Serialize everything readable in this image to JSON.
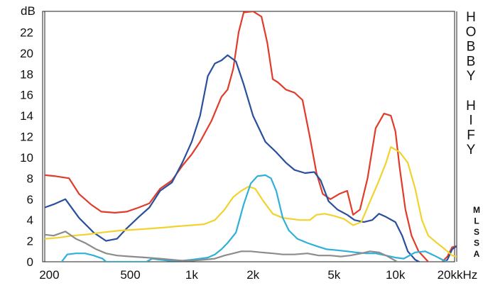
{
  "chart_data": {
    "type": "line",
    "xscale": "log",
    "xlim": [
      190,
      20000
    ],
    "ylim": [
      0,
      24
    ],
    "y_unit": "dB",
    "x_unit": "kHz",
    "grid": false,
    "x_ticks": [
      {
        "value": 200,
        "label": "200"
      },
      {
        "value": 500,
        "label": "500"
      },
      {
        "value": 1000,
        "label": "1k"
      },
      {
        "value": 2000,
        "label": "2k"
      },
      {
        "value": 5000,
        "label": "5k"
      },
      {
        "value": 10000,
        "label": "10k"
      },
      {
        "value": 20000,
        "label": "20k"
      }
    ],
    "y_ticks": [
      {
        "value": 0,
        "label": "0"
      },
      {
        "value": 2,
        "label": "2"
      },
      {
        "value": 4,
        "label": "4"
      },
      {
        "value": 6,
        "label": "6"
      },
      {
        "value": 8,
        "label": "8"
      },
      {
        "value": 10,
        "label": "10"
      },
      {
        "value": 12,
        "label": "12"
      },
      {
        "value": 14,
        "label": "14"
      },
      {
        "value": 16,
        "label": "16"
      },
      {
        "value": 18,
        "label": "18"
      },
      {
        "value": 20,
        "label": "20"
      },
      {
        "value": 22,
        "label": "22"
      }
    ],
    "series": [
      {
        "color": "#e03c2a",
        "points": [
          [
            190,
            8.3
          ],
          [
            215,
            8.2
          ],
          [
            250,
            8.0
          ],
          [
            280,
            6.5
          ],
          [
            320,
            5.5
          ],
          [
            360,
            4.8
          ],
          [
            420,
            4.7
          ],
          [
            480,
            4.8
          ],
          [
            550,
            5.2
          ],
          [
            620,
            5.6
          ],
          [
            700,
            7.0
          ],
          [
            800,
            7.8
          ],
          [
            900,
            9.2
          ],
          [
            1000,
            10.3
          ],
          [
            1100,
            11.5
          ],
          [
            1250,
            13.5
          ],
          [
            1400,
            15.8
          ],
          [
            1500,
            16.5
          ],
          [
            1600,
            18.5
          ],
          [
            1700,
            22.0
          ],
          [
            1800,
            23.9
          ],
          [
            2000,
            24.0
          ],
          [
            2200,
            23.5
          ],
          [
            2350,
            21.0
          ],
          [
            2500,
            17.5
          ],
          [
            2650,
            17.2
          ],
          [
            2900,
            16.5
          ],
          [
            3200,
            16.2
          ],
          [
            3500,
            15.5
          ],
          [
            3800,
            12.0
          ],
          [
            4100,
            8.5
          ],
          [
            4400,
            6.5
          ],
          [
            4800,
            6.0
          ],
          [
            5300,
            6.5
          ],
          [
            5800,
            6.8
          ],
          [
            6200,
            4.5
          ],
          [
            6700,
            5.0
          ],
          [
            7300,
            8.0
          ],
          [
            8000,
            12.8
          ],
          [
            8800,
            14.2
          ],
          [
            9500,
            14.0
          ],
          [
            10000,
            12.5
          ],
          [
            10500,
            9.0
          ],
          [
            11200,
            5.0
          ],
          [
            12000,
            2.5
          ],
          [
            13000,
            1.0
          ],
          [
            14500,
            0.0
          ],
          [
            16000,
            -0.5
          ],
          [
            18000,
            0.5
          ],
          [
            19000,
            1.4
          ],
          [
            20000,
            1.5
          ]
        ]
      },
      {
        "color": "#2a4f9c",
        "points": [
          [
            190,
            5.2
          ],
          [
            210,
            5.5
          ],
          [
            240,
            6.0
          ],
          [
            280,
            4.2
          ],
          [
            330,
            2.8
          ],
          [
            380,
            2.0
          ],
          [
            430,
            2.2
          ],
          [
            480,
            3.2
          ],
          [
            550,
            4.3
          ],
          [
            620,
            5.2
          ],
          [
            700,
            6.8
          ],
          [
            800,
            7.6
          ],
          [
            900,
            9.5
          ],
          [
            1000,
            11.5
          ],
          [
            1100,
            14.0
          ],
          [
            1200,
            17.8
          ],
          [
            1300,
            19.0
          ],
          [
            1400,
            19.3
          ],
          [
            1500,
            19.8
          ],
          [
            1650,
            19.2
          ],
          [
            1800,
            17.0
          ],
          [
            2000,
            14.0
          ],
          [
            2300,
            11.5
          ],
          [
            2600,
            10.5
          ],
          [
            2900,
            9.5
          ],
          [
            3200,
            8.8
          ],
          [
            3600,
            8.5
          ],
          [
            4000,
            8.6
          ],
          [
            4300,
            7.8
          ],
          [
            4700,
            5.8
          ],
          [
            5200,
            5.0
          ],
          [
            5800,
            4.5
          ],
          [
            6300,
            4.0
          ],
          [
            7000,
            3.8
          ],
          [
            7700,
            4.0
          ],
          [
            8300,
            4.6
          ],
          [
            9000,
            4.3
          ],
          [
            10000,
            3.8
          ],
          [
            10800,
            2.5
          ],
          [
            11500,
            1.0
          ],
          [
            12500,
            0.2
          ],
          [
            14000,
            -0.3
          ],
          [
            16000,
            -0.5
          ],
          [
            18000,
            0.2
          ],
          [
            19000,
            1.2
          ],
          [
            20000,
            1.5
          ]
        ]
      },
      {
        "color": "#f2d22e",
        "points": [
          [
            190,
            2.2
          ],
          [
            220,
            2.3
          ],
          [
            260,
            2.5
          ],
          [
            300,
            2.6
          ],
          [
            360,
            2.8
          ],
          [
            450,
            3.0
          ],
          [
            550,
            3.1
          ],
          [
            650,
            3.2
          ],
          [
            750,
            3.3
          ],
          [
            850,
            3.4
          ],
          [
            1000,
            3.5
          ],
          [
            1150,
            3.6
          ],
          [
            1300,
            4.0
          ],
          [
            1450,
            5.0
          ],
          [
            1600,
            6.2
          ],
          [
            1750,
            6.8
          ],
          [
            1900,
            7.2
          ],
          [
            2050,
            7.0
          ],
          [
            2250,
            5.8
          ],
          [
            2500,
            4.6
          ],
          [
            2800,
            4.2
          ],
          [
            3100,
            4.1
          ],
          [
            3400,
            4.0
          ],
          [
            3800,
            4.0
          ],
          [
            4100,
            4.5
          ],
          [
            4500,
            4.6
          ],
          [
            5000,
            4.4
          ],
          [
            5600,
            4.1
          ],
          [
            6200,
            3.5
          ],
          [
            6800,
            3.8
          ],
          [
            7400,
            5.5
          ],
          [
            8200,
            7.5
          ],
          [
            9000,
            9.5
          ],
          [
            9500,
            11.0
          ],
          [
            10500,
            10.5
          ],
          [
            11500,
            9.5
          ],
          [
            12500,
            7.0
          ],
          [
            13500,
            4.0
          ],
          [
            14500,
            2.5
          ],
          [
            16000,
            1.8
          ],
          [
            17500,
            1.2
          ],
          [
            19000,
            0.6
          ],
          [
            20000,
            0.5
          ]
        ]
      },
      {
        "color": "#2fb0d8",
        "points": [
          [
            230,
            0.0
          ],
          [
            245,
            0.7
          ],
          [
            270,
            0.8
          ],
          [
            300,
            0.8
          ],
          [
            330,
            0.6
          ],
          [
            365,
            0.3
          ],
          [
            380,
            0.0
          ],
          [
            600,
            0.0
          ],
          [
            640,
            0.3
          ],
          [
            700,
            0.2
          ],
          [
            780,
            0.1
          ],
          [
            900,
            0.1
          ],
          [
            1000,
            0.2
          ],
          [
            1100,
            0.3
          ],
          [
            1200,
            0.4
          ],
          [
            1300,
            0.7
          ],
          [
            1400,
            1.2
          ],
          [
            1500,
            1.8
          ],
          [
            1650,
            2.8
          ],
          [
            1800,
            5.5
          ],
          [
            1950,
            7.5
          ],
          [
            2100,
            8.2
          ],
          [
            2300,
            8.3
          ],
          [
            2450,
            8.0
          ],
          [
            2600,
            6.8
          ],
          [
            2800,
            4.2
          ],
          [
            3000,
            3.0
          ],
          [
            3300,
            2.2
          ],
          [
            3700,
            1.8
          ],
          [
            4100,
            1.5
          ],
          [
            4600,
            1.2
          ],
          [
            5200,
            1.1
          ],
          [
            5800,
            1.0
          ],
          [
            6400,
            0.9
          ],
          [
            7200,
            0.8
          ],
          [
            8000,
            0.8
          ],
          [
            9000,
            0.6
          ],
          [
            10000,
            0.4
          ],
          [
            11000,
            0.3
          ],
          [
            12500,
            0.9
          ],
          [
            14000,
            1.0
          ],
          [
            15500,
            0.6
          ],
          [
            17000,
            0.2
          ],
          [
            18000,
            0.0
          ]
        ]
      },
      {
        "color": "#8c8c8c",
        "points": [
          [
            190,
            2.6
          ],
          [
            210,
            2.5
          ],
          [
            240,
            2.9
          ],
          [
            270,
            2.2
          ],
          [
            300,
            1.8
          ],
          [
            340,
            1.2
          ],
          [
            380,
            0.8
          ],
          [
            430,
            0.6
          ],
          [
            500,
            0.5
          ],
          [
            600,
            0.4
          ],
          [
            700,
            0.3
          ],
          [
            800,
            0.2
          ],
          [
            900,
            0.1
          ],
          [
            1000,
            0.1
          ],
          [
            1150,
            0.2
          ],
          [
            1300,
            0.3
          ],
          [
            1450,
            0.6
          ],
          [
            1600,
            0.8
          ],
          [
            1750,
            1.0
          ],
          [
            1950,
            1.0
          ],
          [
            2200,
            0.9
          ],
          [
            2500,
            0.8
          ],
          [
            2800,
            0.7
          ],
          [
            3200,
            0.7
          ],
          [
            3700,
            0.8
          ],
          [
            4200,
            0.6
          ],
          [
            4800,
            0.6
          ],
          [
            5400,
            0.5
          ],
          [
            6000,
            0.6
          ],
          [
            6800,
            0.8
          ],
          [
            7500,
            1.0
          ],
          [
            8300,
            0.9
          ],
          [
            9000,
            0.6
          ],
          [
            9800,
            0.2
          ],
          [
            10200,
            0.0
          ]
        ]
      }
    ],
    "side_text": [
      "H",
      "O",
      "B",
      "B",
      "Y",
      "",
      "H",
      "I",
      "F",
      "Y"
    ],
    "legend_labels": [
      "M",
      "L",
      "S",
      "S",
      "A"
    ]
  }
}
